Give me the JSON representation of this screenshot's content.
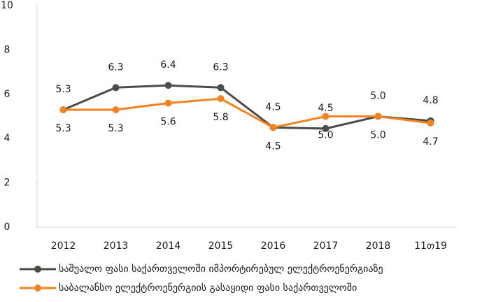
{
  "chart_data": {
    "type": "line",
    "categories": [
      "2012",
      "2013",
      "2014",
      "2015",
      "2016",
      "2017",
      "2018",
      "11თ19"
    ],
    "series": [
      {
        "name": "საშუალო ფასი საქართველოში იმპორტირებულ ელექტროენერგიაზე",
        "color": "#4d4d47",
        "values": [
          5.3,
          6.3,
          6.4,
          6.3,
          4.5,
          4.45,
          5.0,
          4.8
        ],
        "value_labels": [
          "5.3",
          "6.3",
          "6.4",
          "6.3",
          "4.5",
          "4.5",
          "5.0",
          "4.8"
        ]
      },
      {
        "name": "საბალანსო ელექტროენერგიის გასაყიდი ფასი საქართველოში",
        "color": "#f58220",
        "values": [
          5.3,
          5.3,
          5.6,
          5.8,
          4.5,
          5.0,
          5.0,
          4.7
        ],
        "value_labels": [
          "5.3",
          "5.3",
          "5.6",
          "5.8",
          "4.5",
          "5.0",
          "5.0",
          "4.7"
        ]
      }
    ],
    "ylim": [
      0,
      10
    ],
    "yticks": [
      0,
      2,
      4,
      6,
      8,
      10
    ]
  }
}
